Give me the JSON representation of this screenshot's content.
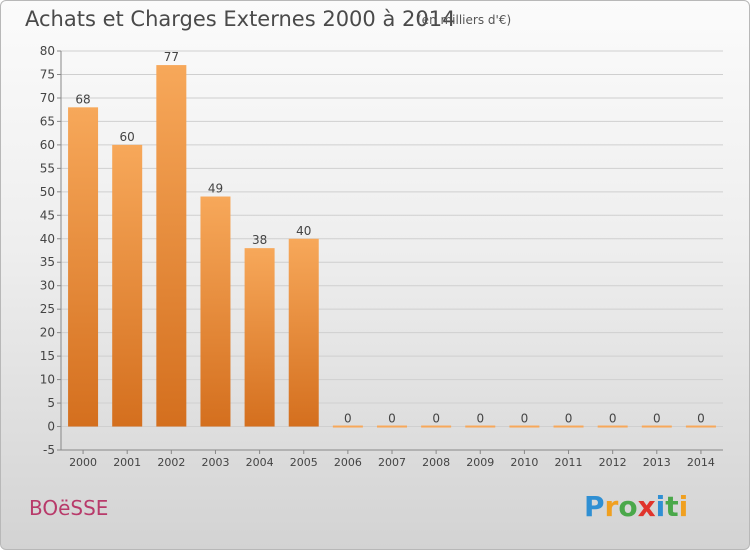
{
  "header": {
    "title": "Achats et Charges Externes 2000 à 2014",
    "subtitle": "(en milliers d'€)"
  },
  "footer": {
    "commune": "BOëSSE",
    "logo": {
      "letters": [
        "P",
        "r",
        "o",
        "x",
        "i",
        "t",
        "i"
      ],
      "colors": [
        "#2f8fd3",
        "#f0a020",
        "#4aa84a",
        "#e0342c",
        "#2f8fd3",
        "#4aa84a",
        "#f0a020"
      ]
    }
  },
  "colors": {
    "bar_top": "#f7a85a",
    "bar_bottom": "#d46f1e",
    "grid": "#cfcfcf",
    "axis": "#888888"
  },
  "chart_data": {
    "type": "bar",
    "title": "Achats et Charges Externes 2000 à 2014",
    "subtitle": "(en milliers d'€)",
    "categories": [
      "2000",
      "2001",
      "2002",
      "2003",
      "2004",
      "2005",
      "2006",
      "2007",
      "2008",
      "2009",
      "2010",
      "2011",
      "2012",
      "2013",
      "2014"
    ],
    "values": [
      68,
      60,
      77,
      49,
      38,
      40,
      0,
      0,
      0,
      0,
      0,
      0,
      0,
      0,
      0
    ],
    "data_labels": [
      "68",
      "60",
      "77",
      "49",
      "38",
      "40",
      "0",
      "0",
      "0",
      "0",
      "0",
      "0",
      "0",
      "0",
      "0"
    ],
    "ylim": [
      -5,
      80
    ],
    "yticks": [
      -5,
      0,
      5,
      10,
      15,
      20,
      25,
      30,
      35,
      40,
      45,
      50,
      55,
      60,
      65,
      70,
      75,
      80
    ],
    "grid": true,
    "legend": "none"
  }
}
